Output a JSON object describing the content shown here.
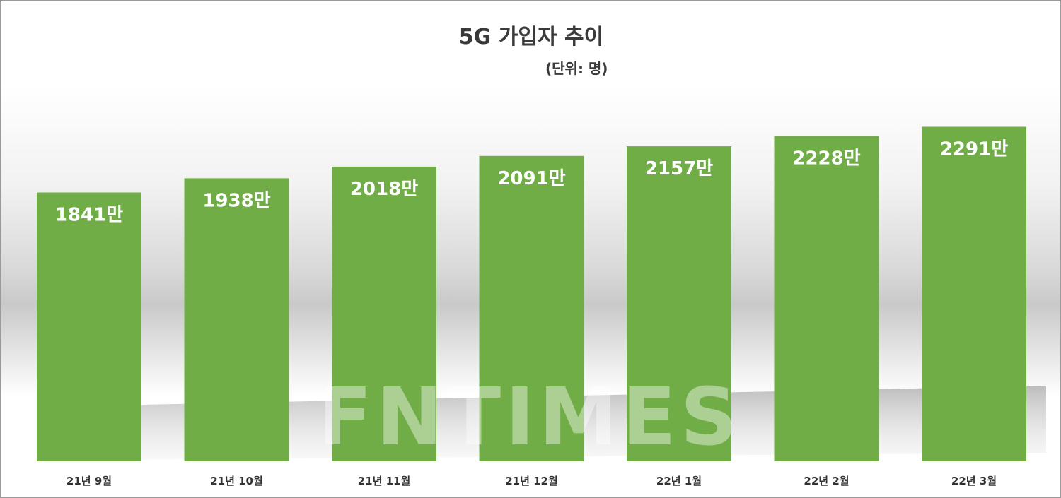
{
  "chart_data": {
    "type": "bar",
    "title": "5G 가입자 추이",
    "subtitle": "(단위: 명)",
    "categories": [
      "21년 9월",
      "21년 10월",
      "21년 11월",
      "21년 12월",
      "22년 1월",
      "22년 2월",
      "22년 3월"
    ],
    "values": [
      1841,
      1938,
      2018,
      2091,
      2157,
      2228,
      2291
    ],
    "data_labels": [
      "1841만",
      "1938만",
      "2018만",
      "2091만",
      "2157만",
      "2228만",
      "2291만"
    ],
    "ylim": [
      0,
      2500
    ],
    "grid": false,
    "legend": "none",
    "bar_color": "#70ad47"
  },
  "watermark": "FNTIMES"
}
